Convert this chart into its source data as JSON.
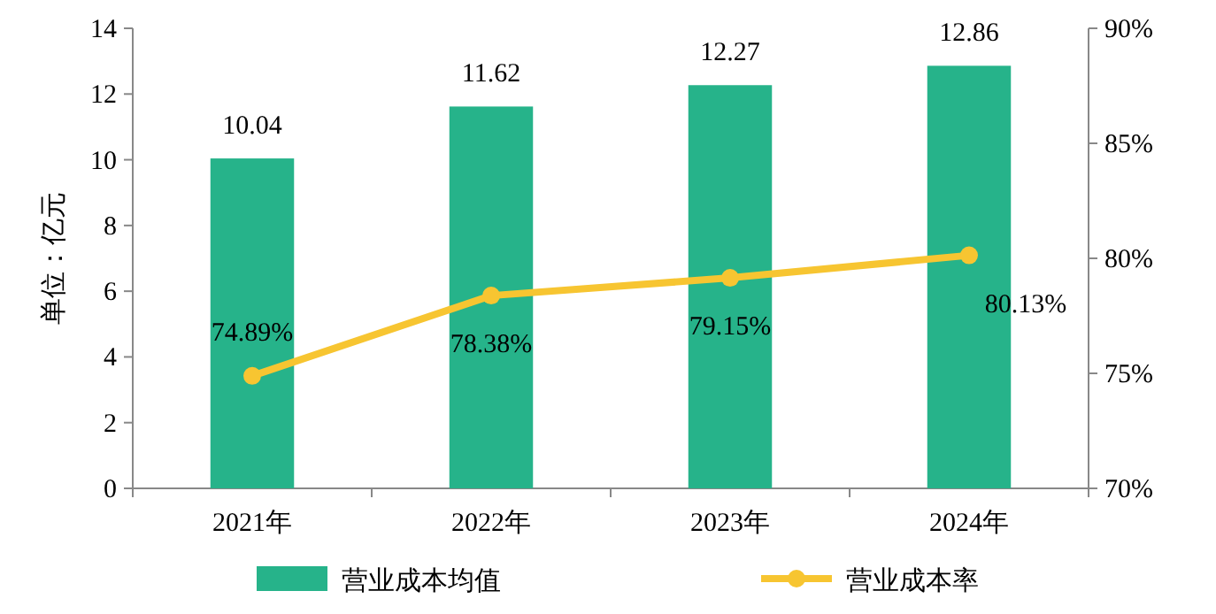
{
  "chart_data": {
    "type": "bar",
    "ylabel": "单位：亿元",
    "categories": [
      "2021年",
      "2022年",
      "2023年",
      "2024年"
    ],
    "series": [
      {
        "name": "营业成本均值",
        "color": "#26b38a",
        "values": [
          10.04,
          11.62,
          12.27,
          12.86
        ]
      },
      {
        "name": "营业成本率",
        "type": "line",
        "axis": "y2",
        "color": "#f7c531",
        "marker": "circle",
        "values": [
          74.89,
          78.38,
          79.15,
          80.13
        ],
        "value_labels": [
          "74.89%",
          "78.38%",
          "79.15%",
          "80.13%"
        ]
      }
    ],
    "ylim": [
      0,
      14
    ],
    "yticks": [
      0,
      2,
      4,
      6,
      8,
      10,
      12,
      14
    ],
    "y2lim": [
      70,
      90
    ],
    "y2ticks": [
      {
        "value": 70,
        "label": "70%"
      },
      {
        "value": 75,
        "label": "75%"
      },
      {
        "value": 80,
        "label": "80%"
      },
      {
        "value": 85,
        "label": "85%"
      },
      {
        "value": 90,
        "label": "90%"
      }
    ],
    "data_labels": true,
    "legend": "bottom",
    "grid": false
  }
}
